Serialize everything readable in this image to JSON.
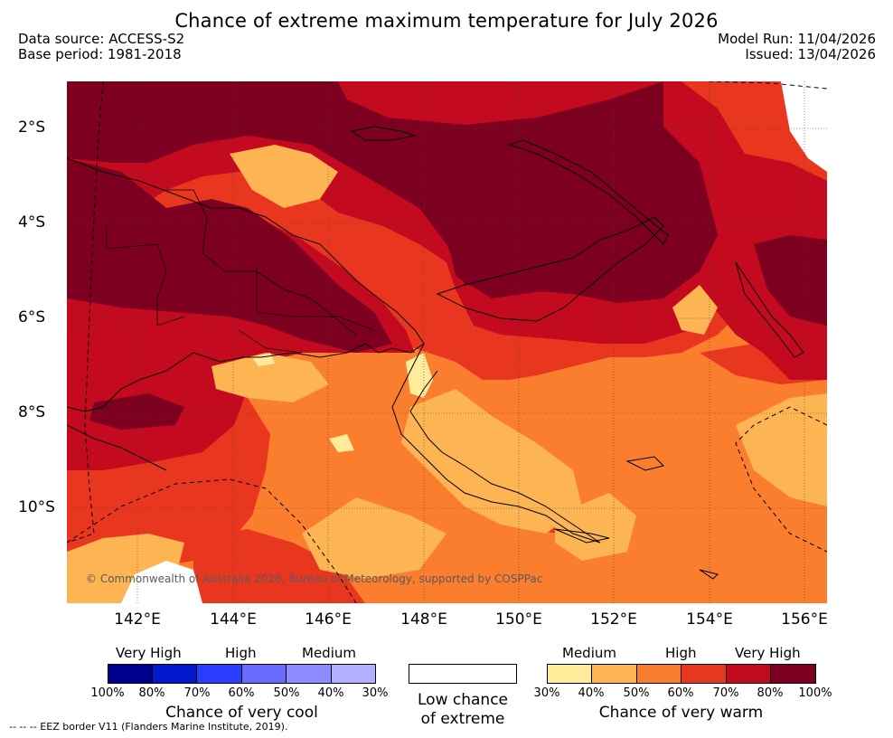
{
  "title": "Chance of extreme maximum temperature for July 2026",
  "meta": {
    "source": "Data source: ACCESS-S2",
    "base": "Base period: 1981-2018",
    "model_run": "Model Run: 11/04/2026",
    "issued": "Issued: 13/04/2026"
  },
  "map": {
    "lon_range": [
      140.5,
      156.5
    ],
    "lat_range": [
      -12.0,
      -1.0
    ],
    "y_labels": [
      "2°S",
      "4°S",
      "6°S",
      "8°S",
      "10°S"
    ],
    "x_labels": [
      "142°E",
      "144°E",
      "146°E",
      "148°E",
      "150°E",
      "152°E",
      "154°E",
      "156°E"
    ],
    "credit": "© Commonwealth of Australia 2026, Bureau of Meteorology, supported by COSPPac"
  },
  "legend": {
    "cool": {
      "categories": [
        "Very High",
        "High",
        "Medium"
      ],
      "colors": [
        "#00008f",
        "#0019cc",
        "#2a3cff",
        "#6a6aff",
        "#8c8cff",
        "#b0b0ff"
      ],
      "ticks": [
        "100%",
        "80%",
        "70%",
        "60%",
        "50%",
        "40%",
        "30%"
      ],
      "caption": "Chance of very cool"
    },
    "low": {
      "line1": "Low chance",
      "line2": "of extreme"
    },
    "warm": {
      "categories": [
        "Medium",
        "High",
        "Very High"
      ],
      "colors": [
        "#ffeb9a",
        "#fdb452",
        "#fb7d2e",
        "#e9361f",
        "#c30a1e",
        "#7e0021"
      ],
      "ticks": [
        "30%",
        "40%",
        "50%",
        "60%",
        "70%",
        "80%",
        "100%"
      ],
      "caption": "Chance of very warm"
    }
  },
  "eez_note": "--  --  -- EEZ border V11 (Flanders Marine Institute, 2019)."
}
